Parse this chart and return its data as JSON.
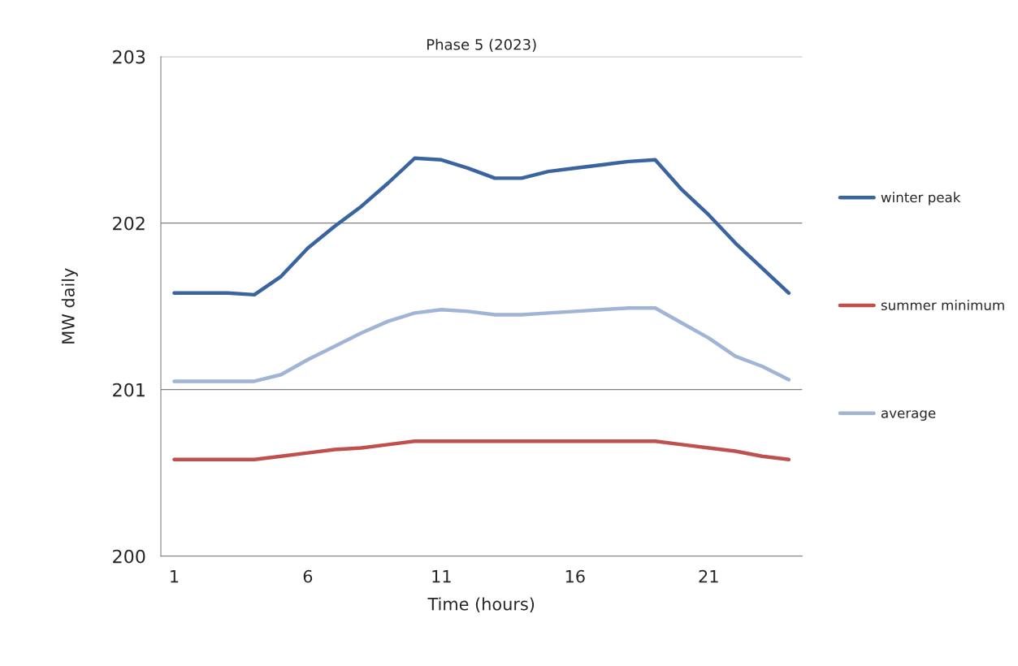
{
  "chart_data": {
    "type": "line",
    "title": "Phase 5 (2023)",
    "xlabel": "Time (hours)",
    "ylabel": "MW daily",
    "x": [
      1,
      2,
      3,
      4,
      5,
      6,
      7,
      8,
      9,
      10,
      11,
      12,
      13,
      14,
      15,
      16,
      17,
      18,
      19,
      20,
      21,
      22,
      23,
      24
    ],
    "series": [
      {
        "name": "winter peak",
        "color": "#3a64a0",
        "values": [
          201.58,
          201.58,
          201.58,
          201.57,
          201.68,
          201.85,
          201.98,
          202.1,
          202.24,
          202.39,
          202.38,
          202.33,
          202.27,
          202.27,
          202.31,
          202.33,
          202.35,
          202.37,
          202.38,
          202.2,
          202.05,
          201.88,
          201.73,
          201.58
        ]
      },
      {
        "name": "summer minimum",
        "color": "#c0504d",
        "values": [
          200.58,
          200.58,
          200.58,
          200.58,
          200.6,
          200.62,
          200.64,
          200.65,
          200.67,
          200.69,
          200.69,
          200.69,
          200.69,
          200.69,
          200.69,
          200.69,
          200.69,
          200.69,
          200.69,
          200.67,
          200.65,
          200.63,
          200.6,
          200.58
        ]
      },
      {
        "name": "average",
        "color": "#a0b4d6",
        "values": [
          201.05,
          201.05,
          201.05,
          201.05,
          201.09,
          201.18,
          201.26,
          201.34,
          201.41,
          201.46,
          201.48,
          201.47,
          201.45,
          201.45,
          201.46,
          201.47,
          201.48,
          201.49,
          201.49,
          201.4,
          201.31,
          201.2,
          201.14,
          201.06
        ]
      }
    ],
    "xlim": [
      0.5,
      24.5
    ],
    "xticks": [
      1,
      6,
      11,
      16,
      21
    ],
    "ylim": [
      200,
      203
    ],
    "yticks": [
      200,
      201,
      202,
      203
    ],
    "grid": "y",
    "legend": "right",
    "marker": "none",
    "line_style": "solid"
  }
}
